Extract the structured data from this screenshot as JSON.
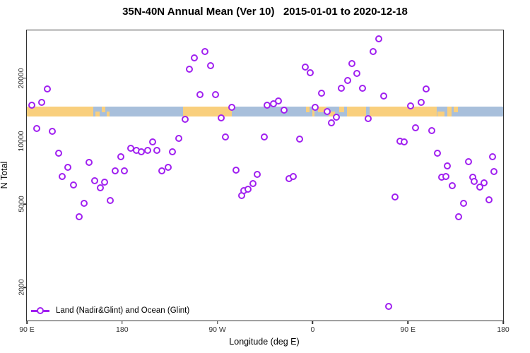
{
  "title": "35N-40N Annual Mean (Ver 10)   2015-01-01 to 2020-12-18",
  "chart_data": {
    "type": "scatter",
    "title": "35N-40N Annual Mean (Ver 10)   2015-01-01 to 2020-12-18",
    "xlabel": "Longitude (deg E)",
    "ylabel": "N Total",
    "point_color": "#A020F0",
    "marker": "open-circle-white-fill",
    "x_axis": {
      "note": "longitude axis wraps eastward, deg = degrees east of 90E left edge",
      "range_deg": [
        0,
        450
      ],
      "ticks": [
        {
          "deg": 0,
          "label": "90 E"
        },
        {
          "deg": 90,
          "label": "180"
        },
        {
          "deg": 180,
          "label": "90 W"
        },
        {
          "deg": 270,
          "label": "0"
        },
        {
          "deg": 360,
          "label": "90 E"
        },
        {
          "deg": 450,
          "label": "180"
        }
      ]
    },
    "y_axis": {
      "scale": "log",
      "range": [
        1390,
        33830
      ],
      "ticks": [
        {
          "value": 2000,
          "label": "2000"
        },
        {
          "value": 5000,
          "label": "5000"
        },
        {
          "value": 10000,
          "label": "10000"
        },
        {
          "value": 20000,
          "label": "20000"
        }
      ]
    },
    "legend": {
      "label": "Land (Nadir&Glint) and Ocean (Glint)"
    },
    "map_band": {
      "land_color": "#F9CF7D",
      "ocean_color": "#A8BFDB",
      "value_range": [
        13080,
        14570
      ],
      "base_segments": [
        {
          "type": "land",
          "from": 0,
          "to": 63
        },
        {
          "type": "ocean",
          "from": 63,
          "to": 147.5
        },
        {
          "type": "land",
          "from": 147.5,
          "to": 193.6
        },
        {
          "type": "ocean",
          "from": 193.6,
          "to": 302.4
        },
        {
          "type": "land",
          "from": 302.4,
          "to": 387.3
        },
        {
          "type": "ocean",
          "from": 387.3,
          "to": 450
        }
      ],
      "patches": [
        {
          "type": "land",
          "from": 64.5,
          "to": 69,
          "valign": "bottom"
        },
        {
          "type": "land",
          "from": 71,
          "to": 74,
          "valign": "top"
        },
        {
          "type": "land",
          "from": 75.5,
          "to": 78,
          "valign": "bottom"
        },
        {
          "type": "land",
          "from": 263.5,
          "to": 267,
          "valign": "top"
        },
        {
          "type": "land",
          "from": 269.5,
          "to": 272,
          "valign": "full"
        },
        {
          "type": "land",
          "from": 275,
          "to": 283,
          "valign": "top"
        },
        {
          "type": "land",
          "from": 285,
          "to": 291,
          "valign": "bottom"
        },
        {
          "type": "land",
          "from": 295,
          "to": 300,
          "valign": "top"
        },
        {
          "type": "ocean",
          "from": 320.5,
          "to": 323.8,
          "valign": "full"
        },
        {
          "type": "land",
          "from": 388,
          "to": 394.6,
          "valign": "bottom"
        },
        {
          "type": "land",
          "from": 397,
          "to": 401,
          "valign": "full"
        },
        {
          "type": "land",
          "from": 403,
          "to": 407.4,
          "valign": "top"
        }
      ]
    },
    "points": [
      [
        4.7,
        14800
      ],
      [
        9.3,
        11500
      ],
      [
        14.0,
        15300
      ],
      [
        19.4,
        17700
      ],
      [
        24.0,
        11100
      ],
      [
        30.0,
        8750
      ],
      [
        33.4,
        6780
      ],
      [
        38.7,
        7500
      ],
      [
        44.1,
        6180
      ],
      [
        49.4,
        4370
      ],
      [
        54.1,
        5050
      ],
      [
        58.7,
        7900
      ],
      [
        64.1,
        6470
      ],
      [
        69.4,
        5990
      ],
      [
        73.4,
        6370
      ],
      [
        78.8,
        5210
      ],
      [
        83.5,
        7210
      ],
      [
        88.8,
        8400
      ],
      [
        92.1,
        7210
      ],
      [
        98.1,
        9230
      ],
      [
        103.5,
        9020
      ],
      [
        108.2,
        8880
      ],
      [
        114.2,
        9020
      ],
      [
        118.8,
        9900
      ],
      [
        122.8,
        9020
      ],
      [
        127.5,
        7210
      ],
      [
        133.5,
        7500
      ],
      [
        137.5,
        8880
      ],
      [
        143.6,
        10300
      ],
      [
        149.6,
        12700
      ],
      [
        153.6,
        22100
      ],
      [
        158.2,
        25000
      ],
      [
        163.6,
        16700
      ],
      [
        168.2,
        26800
      ],
      [
        173.6,
        23000
      ],
      [
        178.3,
        16700
      ],
      [
        183.6,
        12900
      ],
      [
        187.6,
        10450
      ],
      [
        193.6,
        14500
      ],
      [
        197.6,
        7270
      ],
      [
        202.9,
        5500
      ],
      [
        205.0,
        5810
      ],
      [
        208.9,
        5900
      ],
      [
        213.6,
        6280
      ],
      [
        217.6,
        6940
      ],
      [
        224.3,
        10500
      ],
      [
        227.0,
        14800
      ],
      [
        233.0,
        15100
      ],
      [
        237.7,
        15500
      ],
      [
        243.0,
        14100
      ],
      [
        247.7,
        6620
      ],
      [
        251.7,
        6780
      ],
      [
        257.7,
        10200
      ],
      [
        263.1,
        22600
      ],
      [
        267.7,
        21300
      ],
      [
        272.4,
        14500
      ],
      [
        278.4,
        17000
      ],
      [
        283.8,
        13900
      ],
      [
        287.7,
        12200
      ],
      [
        292.4,
        13000
      ],
      [
        297.1,
        17950
      ],
      [
        303.1,
        19500
      ],
      [
        307.1,
        23500
      ],
      [
        311.8,
        21100
      ],
      [
        317.1,
        17950
      ],
      [
        322.4,
        12800
      ],
      [
        327.1,
        26800
      ],
      [
        332.5,
        30800
      ],
      [
        337.1,
        16400
      ],
      [
        341.8,
        1620
      ],
      [
        347.8,
        5420
      ],
      [
        352.5,
        9980
      ],
      [
        356.5,
        9900
      ],
      [
        362.5,
        14700
      ],
      [
        367.2,
        11600
      ],
      [
        372.5,
        15300
      ],
      [
        377.2,
        17700
      ],
      [
        382.5,
        11200
      ],
      [
        387.9,
        8750
      ],
      [
        391.9,
        6700
      ],
      [
        395.9,
        6780
      ],
      [
        397.2,
        7610
      ],
      [
        401.9,
        6130
      ],
      [
        407.9,
        4370
      ],
      [
        412.5,
        5050
      ],
      [
        417.2,
        7980
      ],
      [
        421.2,
        6730
      ],
      [
        422.6,
        6430
      ],
      [
        427.9,
        6040
      ],
      [
        431.9,
        6330
      ],
      [
        436.6,
        5250
      ],
      [
        439.9,
        8420
      ],
      [
        441.3,
        7160
      ]
    ]
  }
}
